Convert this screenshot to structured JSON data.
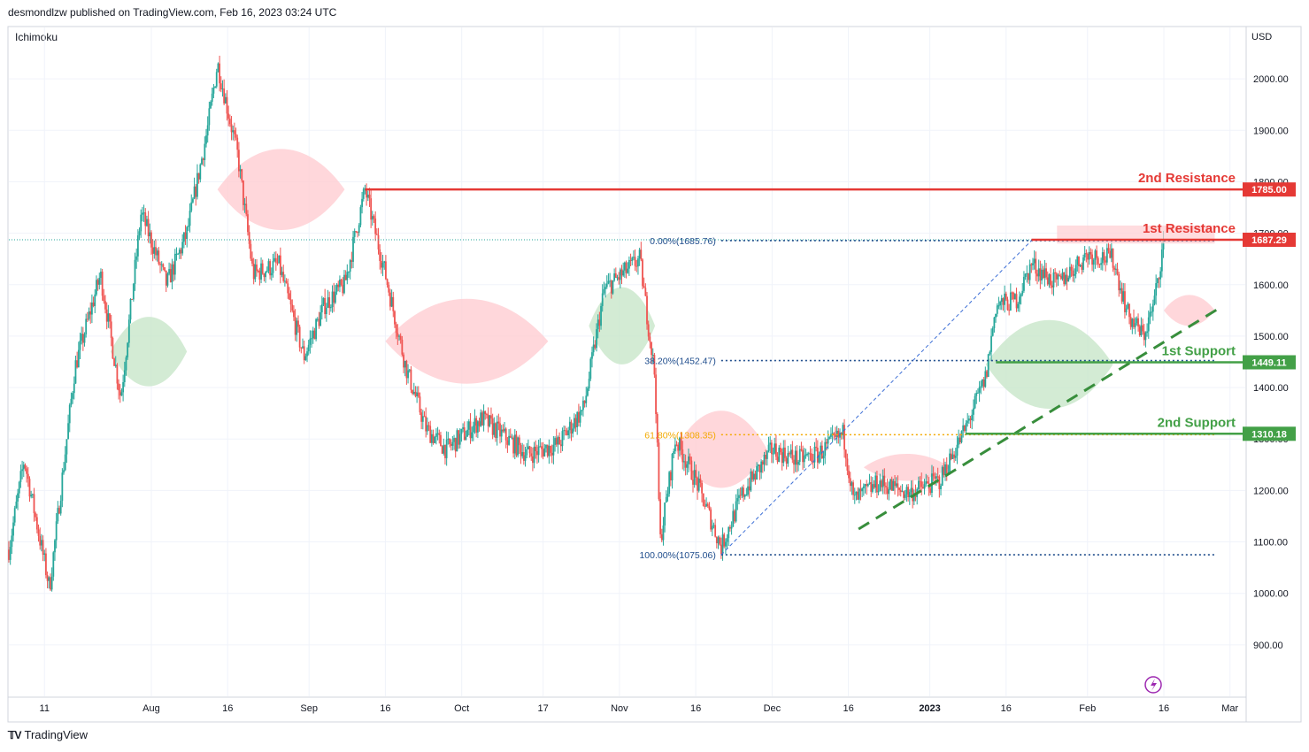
{
  "header": {
    "published_by": "desmondlzw published on TradingView.com, Feb 16, 2023 03:24 UTC",
    "indicator": "Ichimoku",
    "brand": "TradingView"
  },
  "colors": {
    "bull": "#26a69a",
    "bear": "#ef5350",
    "resistance": "#e53935",
    "support": "#43a047",
    "fib_blue": "#1e4c8c",
    "fib_gold": "#f2a900",
    "cloud_bull": "#c8e6c9",
    "cloud_bear": "#ffcdd2"
  },
  "chart_data": {
    "type": "candlestick",
    "currency": "USD",
    "ylim": [
      800,
      2100
    ],
    "y_ticks": [
      900,
      1000,
      1100,
      1200,
      1300,
      1400,
      1500,
      1600,
      1700,
      1800,
      1900,
      2000
    ],
    "y_tick_labels": [
      "900.00",
      "1000.00",
      "1100.00",
      "1200.00",
      "1300.00",
      "1400.00",
      "1500.00",
      "1600.00",
      "1700.00",
      "1800.00",
      "1900.00",
      "2000.00"
    ],
    "x_range": [
      "2022-07-04",
      "2023-03-04"
    ],
    "x_ticks": [
      {
        "date": "2022-07-11",
        "label": "11"
      },
      {
        "date": "2022-08-01",
        "label": "Aug"
      },
      {
        "date": "2022-08-16",
        "label": "16"
      },
      {
        "date": "2022-09-01",
        "label": "Sep"
      },
      {
        "date": "2022-09-16",
        "label": "16"
      },
      {
        "date": "2022-10-01",
        "label": "Oct"
      },
      {
        "date": "2022-10-17",
        "label": "17"
      },
      {
        "date": "2022-11-01",
        "label": "Nov"
      },
      {
        "date": "2022-11-16",
        "label": "16"
      },
      {
        "date": "2022-12-01",
        "label": "Dec"
      },
      {
        "date": "2022-12-16",
        "label": "16"
      },
      {
        "date": "2023-01-01",
        "label": "2023"
      },
      {
        "date": "2023-01-16",
        "label": "16"
      },
      {
        "date": "2023-02-01",
        "label": "Feb"
      },
      {
        "date": "2023-02-16",
        "label": "16"
      },
      {
        "date": "2023-03-01",
        "label": "Mar"
      }
    ],
    "price_path": [
      {
        "date": "2022-07-04",
        "close": 1085
      },
      {
        "date": "2022-07-07",
        "close": 1260
      },
      {
        "date": "2022-07-12",
        "close": 1010
      },
      {
        "date": "2022-07-17",
        "close": 1440
      },
      {
        "date": "2022-07-22",
        "close": 1620
      },
      {
        "date": "2022-07-26",
        "close": 1380
      },
      {
        "date": "2022-07-30",
        "close": 1740
      },
      {
        "date": "2022-08-04",
        "close": 1600
      },
      {
        "date": "2022-08-08",
        "close": 1700
      },
      {
        "date": "2022-08-12",
        "close": 1900
      },
      {
        "date": "2022-08-14",
        "close": 2030
      },
      {
        "date": "2022-08-18",
        "close": 1850
      },
      {
        "date": "2022-08-21",
        "close": 1620
      },
      {
        "date": "2022-08-26",
        "close": 1640
      },
      {
        "date": "2022-08-31",
        "close": 1460
      },
      {
        "date": "2022-09-04",
        "close": 1560
      },
      {
        "date": "2022-09-08",
        "close": 1600
      },
      {
        "date": "2022-09-12",
        "close": 1785
      },
      {
        "date": "2022-09-16",
        "close": 1620
      },
      {
        "date": "2022-09-20",
        "close": 1440
      },
      {
        "date": "2022-09-24",
        "close": 1320
      },
      {
        "date": "2022-09-28",
        "close": 1280
      },
      {
        "date": "2022-10-05",
        "close": 1340
      },
      {
        "date": "2022-10-10",
        "close": 1300
      },
      {
        "date": "2022-10-14",
        "close": 1270
      },
      {
        "date": "2022-10-20",
        "close": 1290
      },
      {
        "date": "2022-10-25",
        "close": 1360
      },
      {
        "date": "2022-10-29",
        "close": 1590
      },
      {
        "date": "2022-11-05",
        "close": 1650
      },
      {
        "date": "2022-11-08",
        "close": 1420
      },
      {
        "date": "2022-11-09",
        "close": 1100
      },
      {
        "date": "2022-11-12",
        "close": 1300
      },
      {
        "date": "2022-11-16",
        "close": 1220
      },
      {
        "date": "2022-11-21",
        "close": 1090
      },
      {
        "date": "2022-11-25",
        "close": 1190
      },
      {
        "date": "2022-12-01",
        "close": 1280
      },
      {
        "date": "2022-12-06",
        "close": 1260
      },
      {
        "date": "2022-12-10",
        "close": 1270
      },
      {
        "date": "2022-12-15",
        "close": 1310
      },
      {
        "date": "2022-12-17",
        "close": 1180
      },
      {
        "date": "2022-12-22",
        "close": 1215
      },
      {
        "date": "2022-12-28",
        "close": 1195
      },
      {
        "date": "2023-01-03",
        "close": 1220
      },
      {
        "date": "2023-01-08",
        "close": 1320
      },
      {
        "date": "2023-01-12",
        "close": 1420
      },
      {
        "date": "2023-01-14",
        "close": 1560
      },
      {
        "date": "2023-01-18",
        "close": 1570
      },
      {
        "date": "2023-01-21",
        "close": 1640
      },
      {
        "date": "2023-01-26",
        "close": 1600
      },
      {
        "date": "2023-02-01",
        "close": 1660
      },
      {
        "date": "2023-02-06",
        "close": 1650
      },
      {
        "date": "2023-02-09",
        "close": 1540
      },
      {
        "date": "2023-02-12",
        "close": 1500
      },
      {
        "date": "2023-02-14",
        "close": 1560
      },
      {
        "date": "2023-02-16",
        "close": 1687
      }
    ],
    "cloud_segments": [
      {
        "from": "2022-07-24",
        "to": "2022-08-08",
        "top": 1560,
        "bottom": 1380,
        "sentiment": "bullish"
      },
      {
        "from": "2022-08-14",
        "to": "2022-09-08",
        "top": 1890,
        "bottom": 1680,
        "sentiment": "bearish"
      },
      {
        "from": "2022-09-16",
        "to": "2022-10-18",
        "top": 1600,
        "bottom": 1380,
        "sentiment": "bearish"
      },
      {
        "from": "2022-10-26",
        "to": "2022-11-08",
        "top": 1620,
        "bottom": 1420,
        "sentiment": "bullish"
      },
      {
        "from": "2022-11-12",
        "to": "2022-11-30",
        "top": 1380,
        "bottom": 1180,
        "sentiment": "bearish"
      },
      {
        "from": "2022-12-19",
        "to": "2023-01-05",
        "top": 1280,
        "bottom": 1210,
        "sentiment": "bearish"
      },
      {
        "from": "2023-01-12",
        "to": "2023-02-06",
        "top": 1560,
        "bottom": 1330,
        "sentiment": "bullish"
      },
      {
        "from": "2023-02-16",
        "to": "2023-02-26",
        "top": 1590,
        "bottom": 1510,
        "sentiment": "bearish"
      }
    ],
    "horizontal_levels": [
      {
        "label": "2nd Resistance",
        "value": 1785.0,
        "value_label": "1785.00",
        "type": "resistance",
        "from": "2022-09-12"
      },
      {
        "label": "1st Resistance",
        "value": 1687.29,
        "value_label": "1687.29",
        "type": "resistance",
        "from": "2023-01-21"
      },
      {
        "label": "1st Support",
        "value": 1449.11,
        "value_label": "1449.11",
        "type": "support",
        "from": "2023-01-14"
      },
      {
        "label": "2nd Support",
        "value": 1310.18,
        "value_label": "1310.18",
        "type": "support",
        "from": "2023-01-08"
      }
    ],
    "resistance_zone": {
      "from": "2023-01-26",
      "to": "2023-02-26",
      "top": 1715,
      "bottom": 1680
    },
    "fibonacci": {
      "from": "2022-11-21",
      "to": "2023-02-26",
      "levels": [
        {
          "ratio": "0.00%",
          "price": 1685.76,
          "label": "0.00%(1685.76)"
        },
        {
          "ratio": "38.20%",
          "price": 1452.47,
          "label": "38.20%(1452.47)"
        },
        {
          "ratio": "61.80%",
          "price": 1308.35,
          "label": "61.80%(1308.35)"
        },
        {
          "ratio": "100.00%",
          "price": 1075.06,
          "label": "100.00%(1075.06)"
        }
      ]
    },
    "trendline": {
      "start": {
        "date": "2022-12-18",
        "value": 1125
      },
      "end": {
        "date": "2023-02-27",
        "value": 1555
      },
      "style": "dashed"
    },
    "fib_diagonal": {
      "start": {
        "date": "2022-11-21",
        "value": 1075
      },
      "end": {
        "date": "2023-01-21",
        "value": 1686
      }
    },
    "last_price": 1687.29
  }
}
